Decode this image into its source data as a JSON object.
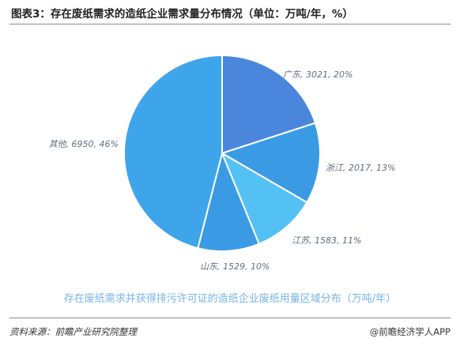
{
  "title": "图表3：存在废纸需求的造纸企业需求量分布情况（单位：万吨/年，%）",
  "subtitle": "存在废纸需求并获得排污许可证的造纸企业废纸用量区域分布（万吨/年）",
  "footer": {
    "source": "资料来源：前瞻产业研究院整理",
    "brand": "@前瞻经济学人APP"
  },
  "chart_data": {
    "type": "pie",
    "unit": "万吨/年, %",
    "slices": [
      {
        "label": "广东",
        "value": 3021,
        "percent": 20,
        "color": "#4a87dc",
        "text": "广东, 3021, 20%"
      },
      {
        "label": "浙江",
        "value": 2017,
        "percent": 13,
        "color": "#3a9be4",
        "text": "浙江, 2017, 13%"
      },
      {
        "label": "江苏",
        "value": 1583,
        "percent": 11,
        "color": "#54c1f4",
        "text": "江苏, 1583, 11%"
      },
      {
        "label": "山东",
        "value": 1529,
        "percent": 10,
        "color": "#3a9be4",
        "text": "山东, 1529, 10%"
      },
      {
        "label": "其他",
        "value": 6950,
        "percent": 46,
        "color": "#3fa5ea",
        "text": "其他, 6950, 46%"
      }
    ]
  }
}
